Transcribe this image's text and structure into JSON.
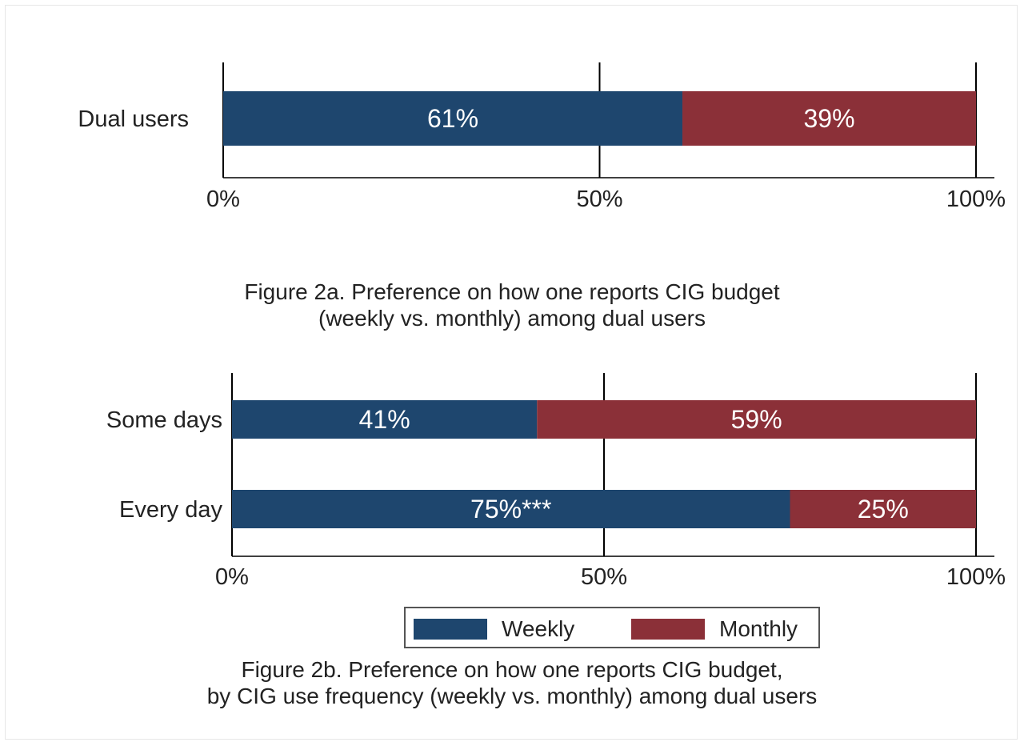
{
  "colors": {
    "weekly": "#1e466e",
    "monthly": "#8b3038",
    "axis": "#000000",
    "text": "#222222"
  },
  "legend": {
    "weekly": "Weekly",
    "monthly": "Monthly"
  },
  "captions": {
    "fig_a_line1": "Figure 2a. Preference on how one reports CIG budget",
    "fig_a_line2": "(weekly vs. monthly) among dual users",
    "fig_b_line1": "Figure 2b. Preference on how one reports CIG budget,",
    "fig_b_line2": "by CIG use frequency (weekly vs. monthly) among dual users"
  },
  "chart_data": [
    {
      "type": "bar",
      "orientation": "horizontal",
      "stacked": true,
      "categories": [
        "Dual users"
      ],
      "series": [
        {
          "name": "Weekly",
          "values": [
            61
          ],
          "labels": [
            "61%"
          ]
        },
        {
          "name": "Monthly",
          "values": [
            39
          ],
          "labels": [
            "39%"
          ]
        }
      ],
      "xlim": [
        0,
        100
      ],
      "xticks": [
        "0%",
        "50%",
        "100%"
      ],
      "xgrid": true
    },
    {
      "type": "bar",
      "orientation": "horizontal",
      "stacked": true,
      "categories": [
        "Some days",
        "Every day"
      ],
      "series": [
        {
          "name": "Weekly",
          "values": [
            41,
            75
          ],
          "labels": [
            "41%",
            "75%***"
          ]
        },
        {
          "name": "Monthly",
          "values": [
            59,
            25
          ],
          "labels": [
            "59%",
            "25%"
          ]
        }
      ],
      "xlim": [
        0,
        100
      ],
      "xticks": [
        "0%",
        "50%",
        "100%"
      ],
      "xgrid": true,
      "legend": "bottom"
    }
  ]
}
